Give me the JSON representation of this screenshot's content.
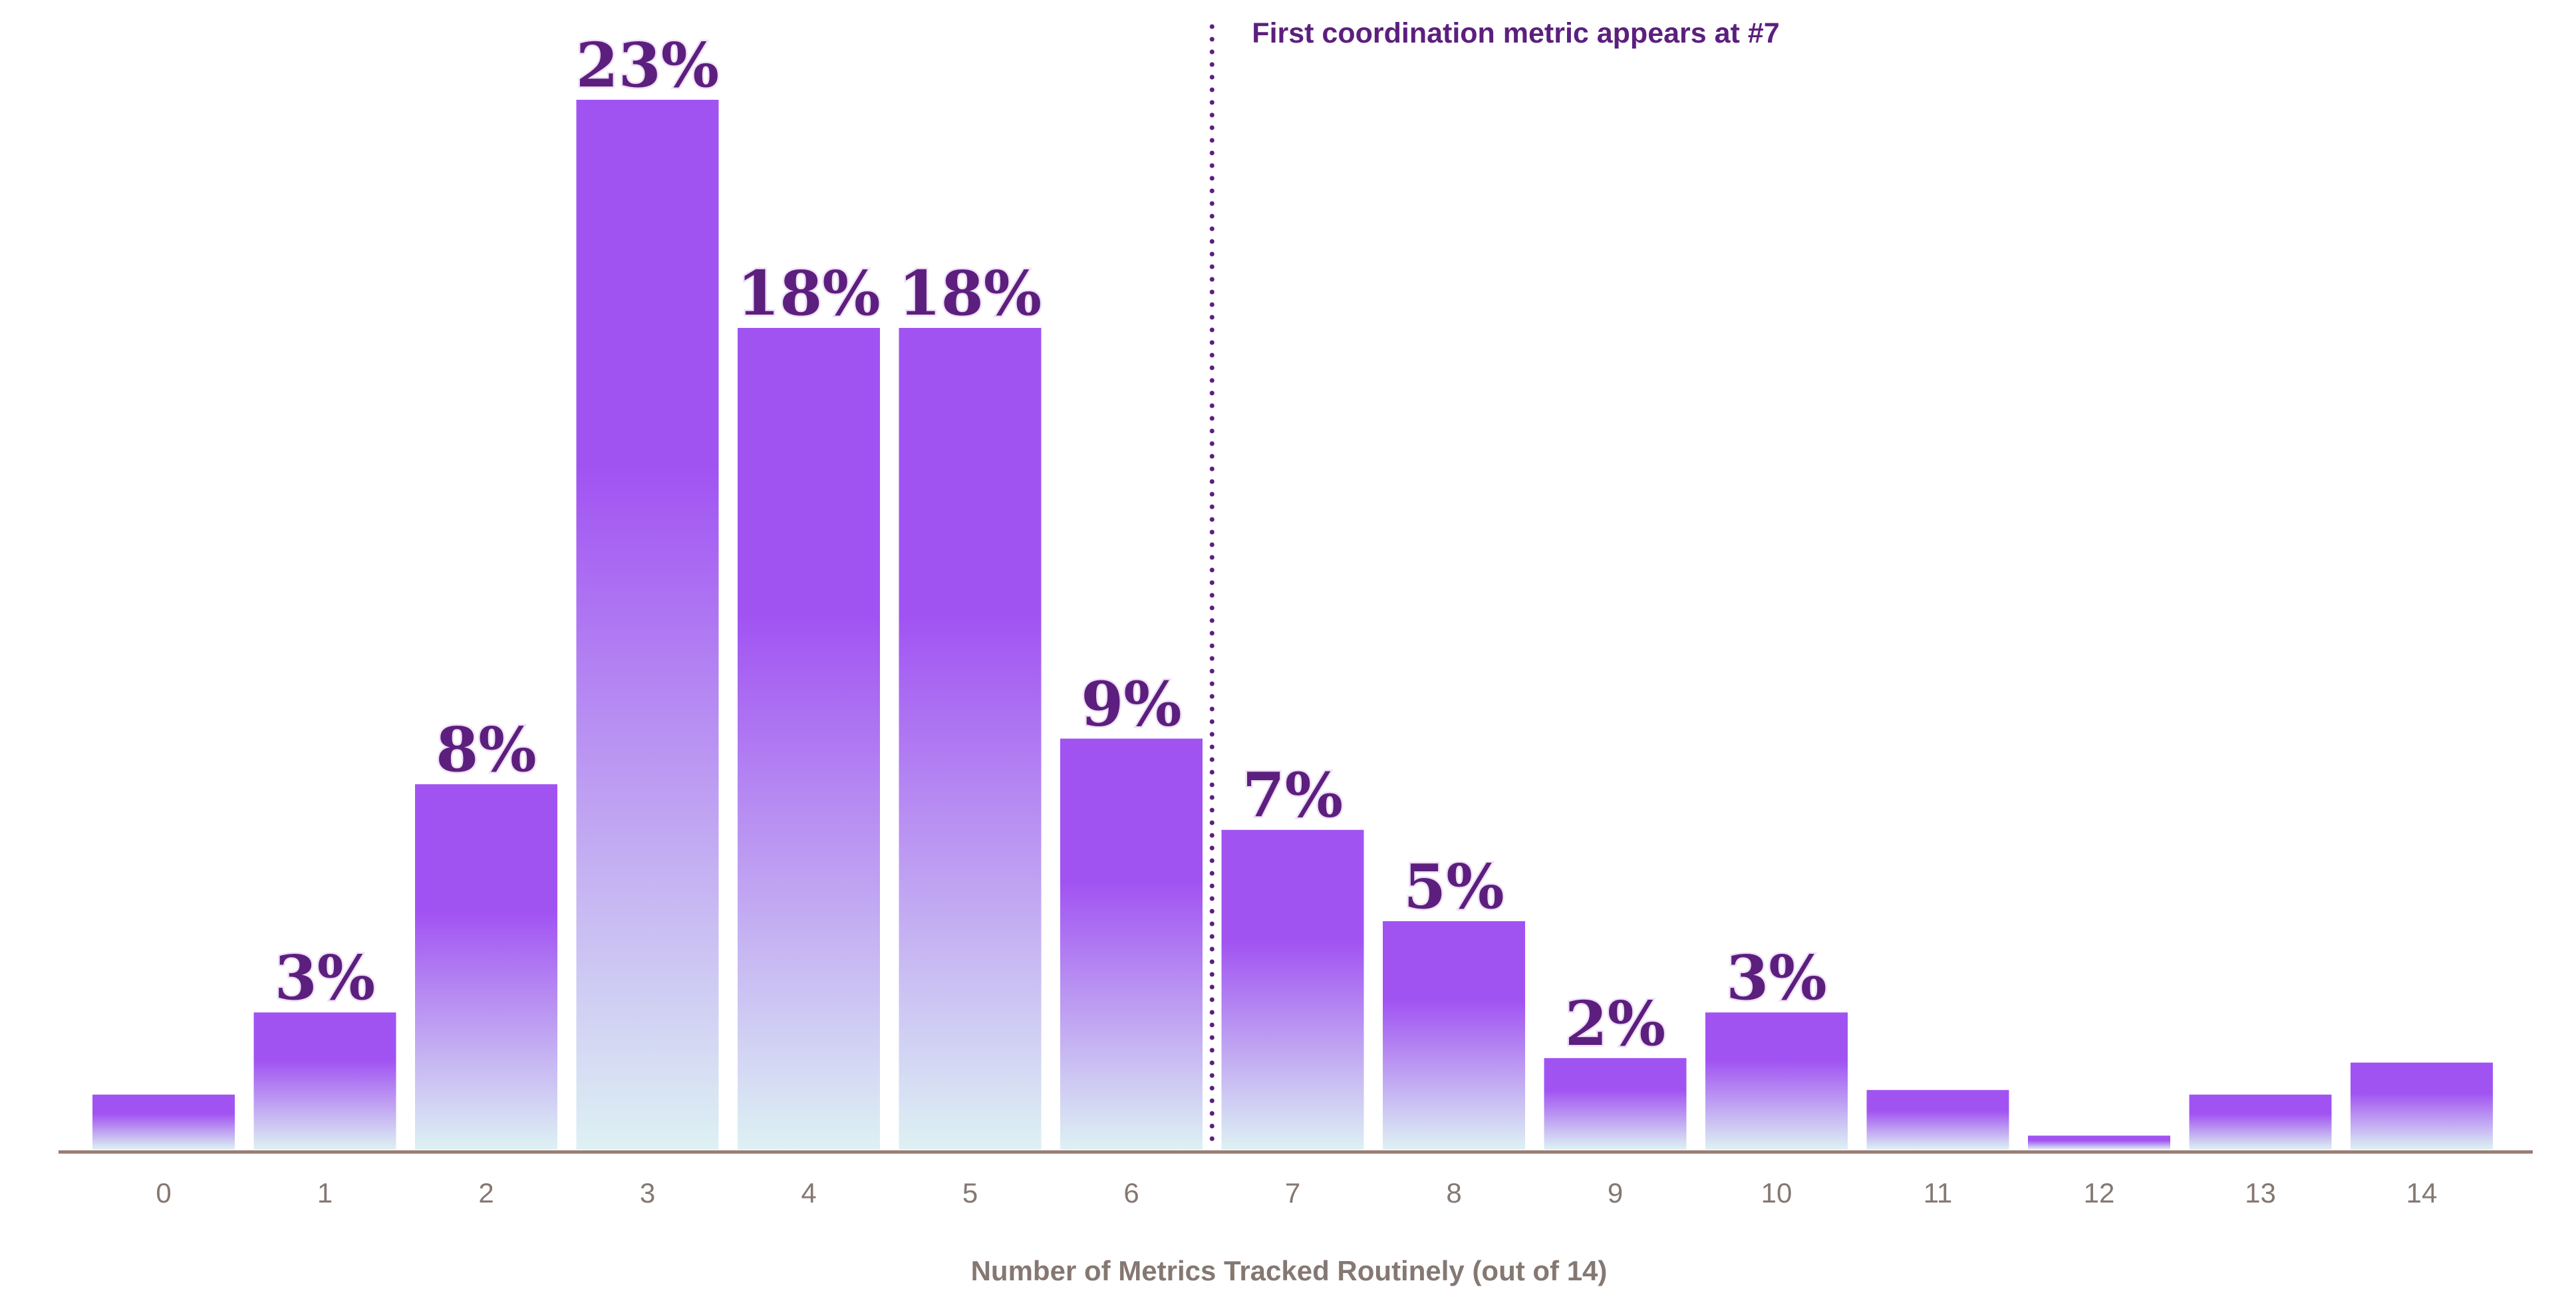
{
  "chart_data": {
    "type": "bar",
    "categories": [
      "0",
      "1",
      "2",
      "3",
      "4",
      "5",
      "6",
      "7",
      "8",
      "9",
      "10",
      "11",
      "12",
      "13",
      "14"
    ],
    "values": [
      1.2,
      3,
      8,
      23,
      18,
      18,
      9,
      7,
      5,
      2,
      3,
      1.3,
      0.3,
      1.2,
      1.9
    ],
    "data_labels": [
      "",
      "3%",
      "8%",
      "23%",
      "18%",
      "18%",
      "9%",
      "7%",
      "5%",
      "2%",
      "3%",
      "",
      "",
      "",
      ""
    ],
    "title": "",
    "xlabel": "Number of Metrics Tracked Routinely (out of 14)",
    "ylabel": "",
    "ylim": [
      0,
      23
    ],
    "grid": false,
    "annotation": {
      "text": "First coordination metric appears at #7",
      "between_categories": [
        "6",
        "7"
      ],
      "line_style": "dotted"
    },
    "colors": {
      "bar_top": "#a153f2",
      "bar_bottom": "#ddf1f3",
      "label": "#5c1f7e",
      "axis": "#9a7b73",
      "tick_text": "#857872",
      "annotation": "#5c1f7e"
    }
  }
}
